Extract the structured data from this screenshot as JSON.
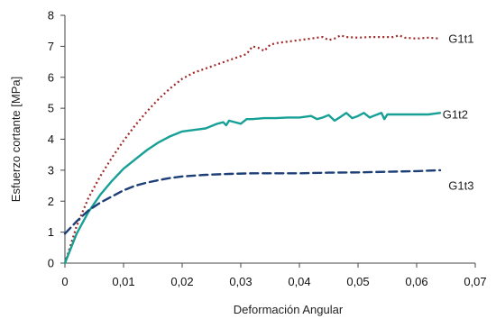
{
  "chart_data": {
    "type": "line",
    "title": "",
    "xlabel": "Deformación Angular",
    "ylabel": "Esfuerzo cortante [MPa]",
    "xlim": [
      0,
      0.07
    ],
    "ylim": [
      0,
      8
    ],
    "x_ticks": [
      0,
      0.01,
      0.02,
      0.03,
      0.04,
      0.05,
      0.06,
      0.07
    ],
    "x_tick_labels": [
      "0",
      "0,01",
      "0,02",
      "0,03",
      "0,04",
      "0,05",
      "0,06",
      "0,07"
    ],
    "y_ticks": [
      0,
      1,
      2,
      3,
      4,
      5,
      6,
      7,
      8
    ],
    "y_tick_labels": [
      "0",
      "1",
      "2",
      "3",
      "4",
      "5",
      "6",
      "7",
      "8"
    ],
    "grid": false,
    "series": [
      {
        "name": "G1t1",
        "color": "#a02828",
        "line_style": "dotted",
        "x": [
          0,
          0.002,
          0.004,
          0.006,
          0.008,
          0.01,
          0.012,
          0.014,
          0.016,
          0.018,
          0.02,
          0.022,
          0.025,
          0.028,
          0.031,
          0.032,
          0.033,
          0.034,
          0.035,
          0.036,
          0.038,
          0.04,
          0.042,
          0.043,
          0.044,
          0.045,
          0.046,
          0.047,
          0.048,
          0.05,
          0.052,
          0.054,
          0.056,
          0.057,
          0.058,
          0.06,
          0.062,
          0.064
        ],
        "y": [
          0,
          1.2,
          2.1,
          2.8,
          3.4,
          3.95,
          4.45,
          4.9,
          5.3,
          5.65,
          5.95,
          6.15,
          6.35,
          6.55,
          6.75,
          7.0,
          6.95,
          6.85,
          7.05,
          7.1,
          7.15,
          7.2,
          7.25,
          7.28,
          7.3,
          7.2,
          7.25,
          7.35,
          7.3,
          7.28,
          7.3,
          7.3,
          7.3,
          7.35,
          7.28,
          7.25,
          7.28,
          7.25
        ]
      },
      {
        "name": "G1t2",
        "color": "#17a096",
        "line_style": "solid",
        "x": [
          0,
          0.002,
          0.004,
          0.006,
          0.008,
          0.01,
          0.012,
          0.014,
          0.016,
          0.018,
          0.02,
          0.022,
          0.024,
          0.026,
          0.027,
          0.0275,
          0.028,
          0.029,
          0.03,
          0.031,
          0.032,
          0.034,
          0.036,
          0.038,
          0.04,
          0.042,
          0.043,
          0.044,
          0.045,
          0.046,
          0.047,
          0.048,
          0.049,
          0.05,
          0.051,
          0.052,
          0.053,
          0.054,
          0.0545,
          0.055,
          0.056,
          0.058,
          0.06,
          0.062,
          0.064
        ],
        "y": [
          0,
          0.95,
          1.65,
          2.2,
          2.65,
          3.05,
          3.35,
          3.65,
          3.9,
          4.1,
          4.25,
          4.3,
          4.35,
          4.5,
          4.55,
          4.45,
          4.6,
          4.55,
          4.5,
          4.65,
          4.65,
          4.68,
          4.68,
          4.7,
          4.7,
          4.75,
          4.65,
          4.7,
          4.78,
          4.6,
          4.72,
          4.85,
          4.68,
          4.75,
          4.85,
          4.7,
          4.78,
          4.85,
          4.65,
          4.8,
          4.8,
          4.8,
          4.8,
          4.8,
          4.85
        ]
      },
      {
        "name": "G1t3",
        "color": "#1d3f78",
        "line_style": "dashed",
        "x": [
          0,
          0.002,
          0.004,
          0.006,
          0.008,
          0.01,
          0.012,
          0.014,
          0.016,
          0.018,
          0.02,
          0.024,
          0.028,
          0.032,
          0.036,
          0.04,
          0.045,
          0.05,
          0.055,
          0.06,
          0.064
        ],
        "y": [
          0.95,
          1.35,
          1.7,
          1.95,
          2.15,
          2.35,
          2.5,
          2.6,
          2.68,
          2.75,
          2.8,
          2.85,
          2.88,
          2.9,
          2.9,
          2.9,
          2.92,
          2.93,
          2.95,
          2.97,
          3.0
        ]
      }
    ],
    "series_labels": [
      {
        "text": "G1t1",
        "x": 0.0645,
        "y": 7.25
      },
      {
        "text": "G1t2",
        "x": 0.0635,
        "y": 4.8
      },
      {
        "text": "G1t3",
        "x": 0.0645,
        "y": 2.5
      }
    ]
  }
}
